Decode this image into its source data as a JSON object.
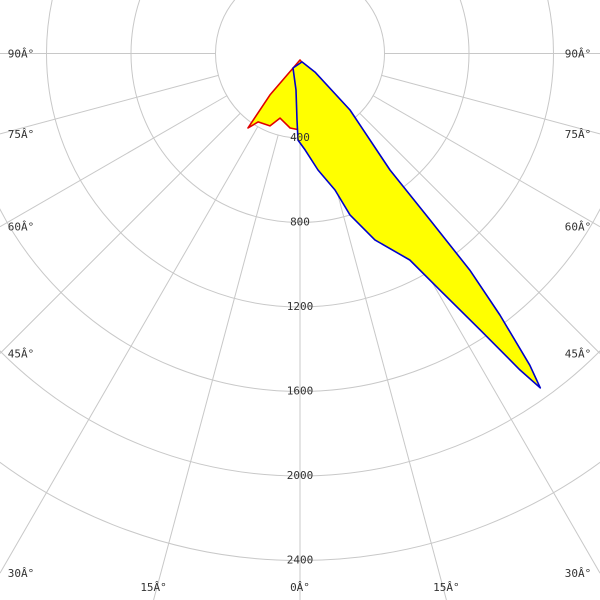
{
  "chart_data": {
    "type": "polar",
    "ylim": [
      0,
      2400
    ],
    "yticks": [
      400,
      800,
      1200,
      1600,
      2000,
      2400
    ],
    "xticks": [
      {
        "value": -90,
        "label": "90Â°"
      },
      {
        "value": -75,
        "label": "75Â°"
      },
      {
        "value": -60,
        "label": "60Â°"
      },
      {
        "value": -45,
        "label": "45Â°"
      },
      {
        "value": -30,
        "label": "30Â°"
      },
      {
        "value": -15,
        "label": "15Â°"
      },
      {
        "value": 0,
        "label": "0Â°"
      },
      {
        "value": 15,
        "label": "15Â°"
      },
      {
        "value": 30,
        "label": "30Â°"
      },
      {
        "value": 45,
        "label": "45Â°"
      },
      {
        "value": 60,
        "label": "60Â°"
      },
      {
        "value": 75,
        "label": "75Â°"
      },
      {
        "value": 90,
        "label": "90Â°"
      }
    ],
    "fill": "#ffff00",
    "grid": true,
    "series": [
      {
        "color": "#e00000",
        "x": [
          0,
          -35.9,
          -34.9,
          -31.5,
          -22.5,
          -17.2,
          -7.6,
          0,
          8.3,
          16.7,
          23.6,
          32.1,
          33.9,
          34.4
        ],
        "values": [
          31,
          242,
          430,
          380,
          371,
          320,
          356,
          362,
          328,
          329,
          354,
          338,
          425,
          209
        ]
      },
      {
        "color": "#0000cc",
        "x": [
          -25.8,
          -6.3,
          -2.6,
          -1.3,
          3.0,
          8.8,
          14.4,
          17.2,
          21.9,
          28.0,
          30.6,
          33.1,
          34.8,
          35.7,
          36.4,
          37.4,
          38.1,
          38.0,
          37.7,
          41.5,
          39.0,
          13.2
        ],
        "values": [
          76,
          174,
          315,
          410,
          457,
          558,
          667,
          800,
          951,
          1107,
          1301,
          1562,
          1824,
          1949,
          1833,
          1558,
          1303,
          1000,
          697,
          357,
          113,
          41
        ]
      }
    ]
  }
}
